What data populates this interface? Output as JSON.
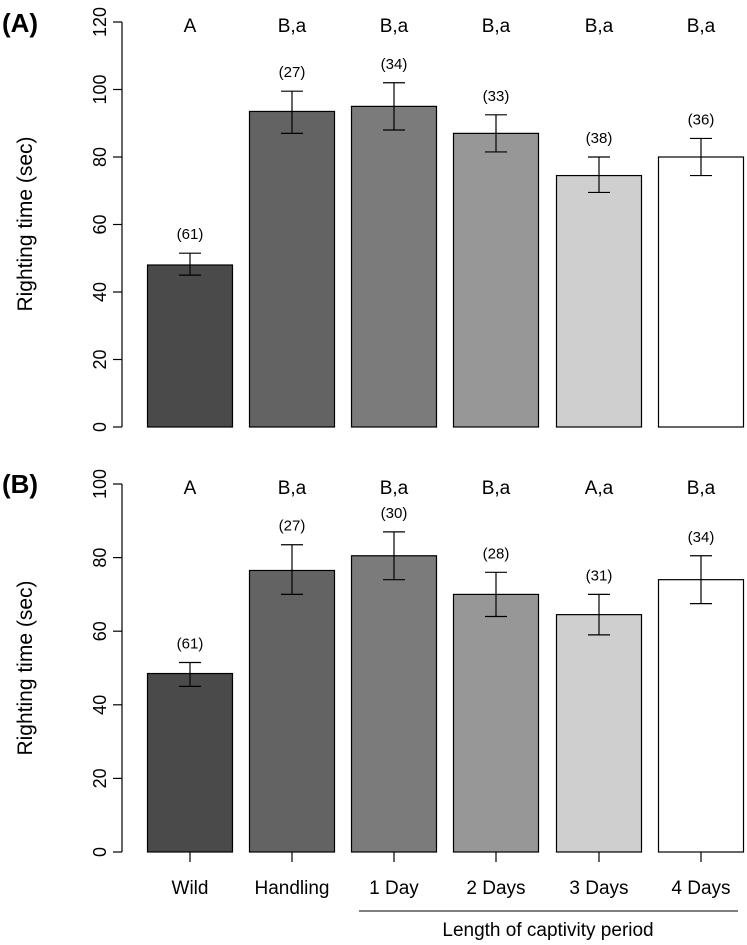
{
  "chart_data": [
    {
      "type": "bar",
      "panel_label": "(A)",
      "ylabel": "Righting time (sec)",
      "ylim": [
        0,
        120
      ],
      "yticks": [
        0,
        20,
        40,
        60,
        80,
        100,
        120
      ],
      "categories": [
        "Wild",
        "Handling",
        "1 Day",
        "2 Days",
        "3 Days",
        "4 Days"
      ],
      "values": [
        48,
        93.5,
        95,
        87,
        74.5,
        80
      ],
      "error_low": [
        45,
        87,
        88,
        81.5,
        69.5,
        74.5
      ],
      "error_high": [
        51.5,
        99.5,
        102,
        92.5,
        80,
        85.5
      ],
      "sample_sizes": [
        "(61)",
        "(27)",
        "(34)",
        "(33)",
        "(38)",
        "(36)"
      ],
      "significance": [
        "A",
        "B,a",
        "B,a",
        "B,a",
        "B,a",
        "B,a"
      ],
      "bar_colors": [
        "#4a4a4a",
        "#636363",
        "#7b7b7b",
        "#979797",
        "#cfcfcf",
        "#ffffff"
      ],
      "show_xticklabels": false
    },
    {
      "type": "bar",
      "panel_label": "(B)",
      "ylabel": "Righting time (sec)",
      "ylim": [
        0,
        100
      ],
      "yticks": [
        0,
        20,
        40,
        60,
        80,
        100
      ],
      "categories": [
        "Wild",
        "Handling",
        "1 Day",
        "2 Days",
        "3 Days",
        "4 Days"
      ],
      "values": [
        48.5,
        76.5,
        80.5,
        70,
        64.5,
        74
      ],
      "error_low": [
        45,
        70,
        74,
        64,
        59,
        67.5
      ],
      "error_high": [
        51.5,
        83.5,
        87,
        76,
        70,
        80.5
      ],
      "sample_sizes": [
        "(61)",
        "(27)",
        "(30)",
        "(28)",
        "(31)",
        "(34)"
      ],
      "significance": [
        "A",
        "B,a",
        "B,a",
        "B,a",
        "A,a",
        "B,a"
      ],
      "bar_colors": [
        "#4a4a4a",
        "#636363",
        "#7b7b7b",
        "#979797",
        "#cfcfcf",
        "#ffffff"
      ],
      "show_xticklabels": true,
      "group_label": "Length of captivity period"
    }
  ]
}
